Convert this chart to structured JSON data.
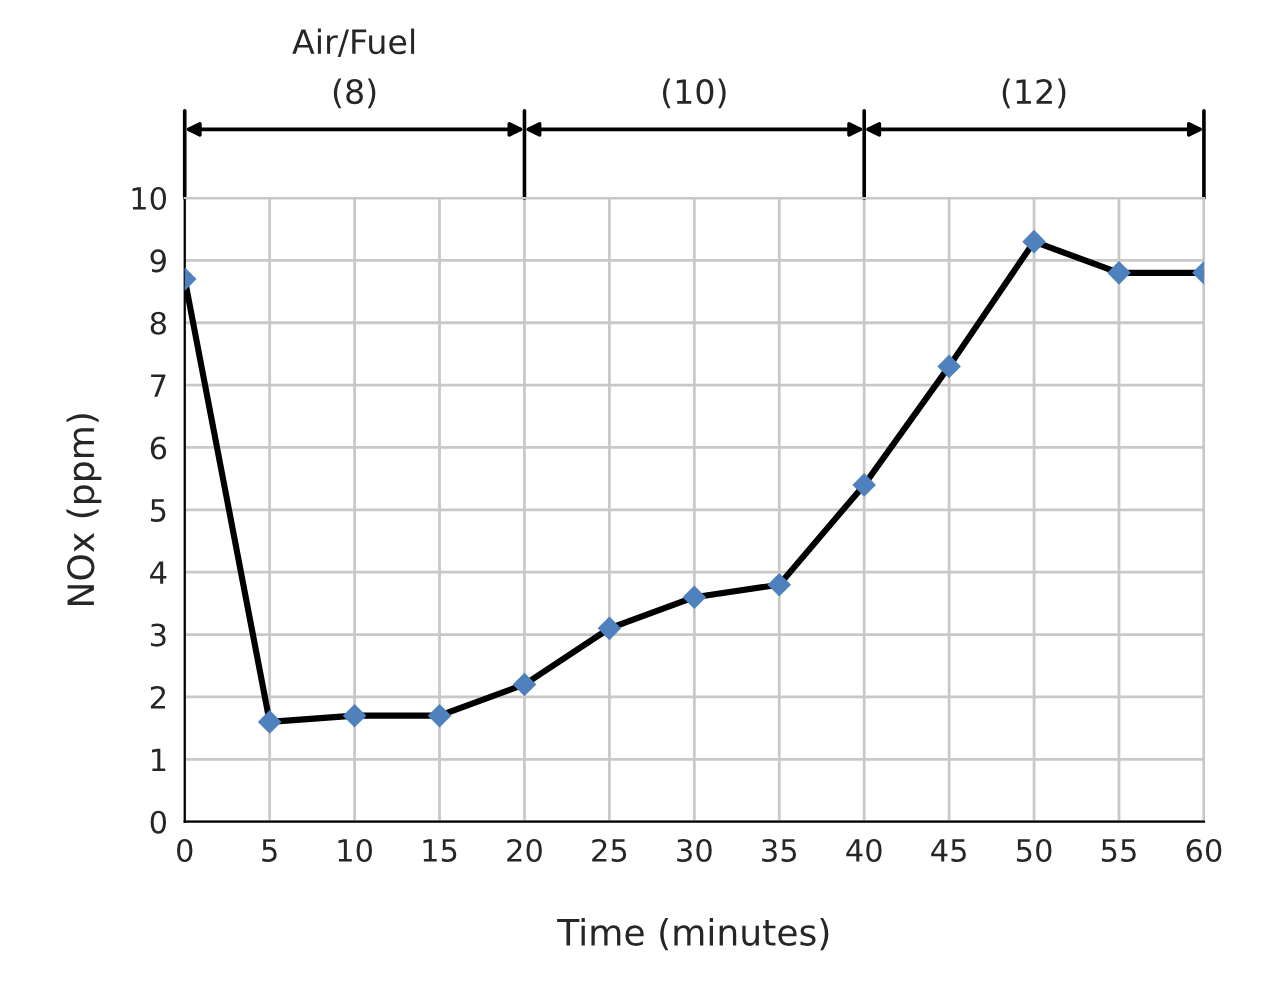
{
  "chart_data": {
    "type": "line",
    "xlabel": "Time (minutes)",
    "ylabel": "NOx (ppm)",
    "x": [
      0,
      5,
      10,
      15,
      20,
      25,
      30,
      35,
      40,
      45,
      50,
      55,
      60
    ],
    "series": [
      {
        "color": "#000000",
        "colors": [
          "#4f81bd",
          "#4f81bd",
          "#4f81bd",
          "#4f81bd",
          "#4f81bd",
          "#4f81bd",
          "#4f81bd",
          "#4f81bd",
          "#4f81bd",
          "#4f81bd",
          "#4f81bd",
          "#4f81bd",
          "#4f81bd"
        ],
        "values": [
          8.7,
          1.6,
          1.7,
          1.7,
          2.2,
          3.1,
          3.6,
          3.8,
          5.4,
          7.3,
          9.3,
          8.8,
          8.8
        ]
      }
    ],
    "xlim": [
      0,
      60
    ],
    "xticks": [
      0,
      5,
      10,
      15,
      20,
      25,
      30,
      35,
      40,
      45,
      50,
      55,
      60
    ],
    "ylim": [
      0,
      10
    ],
    "yticks": [
      0,
      1,
      2,
      3,
      4,
      5,
      6,
      7,
      8,
      9,
      10
    ],
    "grid": true,
    "marker": "diamond",
    "line_style": "solid",
    "annotations": [
      "Air/Fuel",
      "(8)",
      "(10)",
      "(12)"
    ]
  }
}
